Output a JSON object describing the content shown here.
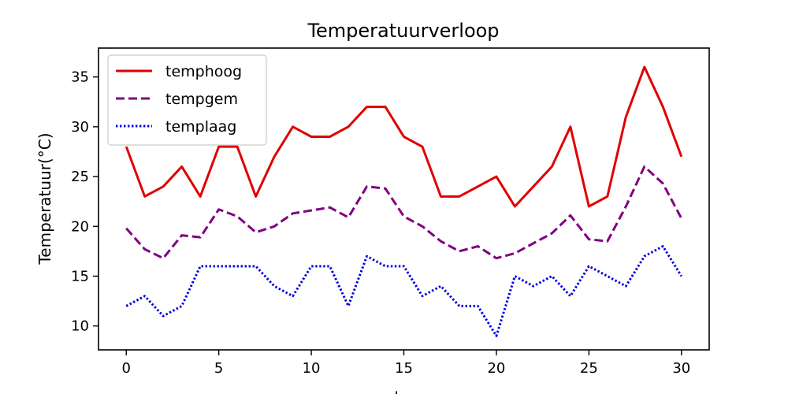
{
  "chart_data": {
    "type": "line",
    "title": "Temperatuurverloop",
    "xlabel": "dag",
    "ylabel": "Temperatuur(°C)",
    "x": [
      0,
      1,
      2,
      3,
      4,
      5,
      6,
      7,
      8,
      9,
      10,
      11,
      12,
      13,
      14,
      15,
      16,
      17,
      18,
      19,
      20,
      21,
      22,
      23,
      24,
      25,
      26,
      27,
      28,
      29,
      30
    ],
    "xlim": [
      -1.5,
      31.5
    ],
    "ylim": [
      7.6,
      37.9
    ],
    "xticks": [
      0,
      5,
      10,
      15,
      20,
      25,
      30
    ],
    "yticks": [
      10,
      15,
      20,
      25,
      30,
      35
    ],
    "grid": false,
    "legend": "top-left",
    "series": [
      {
        "name": "temphoog",
        "color": "#e00000",
        "style": "solid",
        "values": [
          28,
          23,
          24,
          26,
          23,
          28,
          28,
          23,
          27,
          30,
          29,
          29,
          30,
          32,
          32,
          29,
          28,
          23,
          23,
          24,
          25,
          22,
          24,
          26,
          30,
          22,
          23,
          31,
          36,
          32,
          27
        ]
      },
      {
        "name": "tempgem",
        "color": "#800080",
        "style": "dashed",
        "values": [
          19.8,
          17.7,
          16.8,
          19.1,
          18.9,
          21.7,
          21,
          19.4,
          20,
          21.3,
          21.6,
          21.9,
          20.9,
          24,
          23.8,
          21,
          20,
          18.5,
          17.5,
          18,
          16.8,
          17.3,
          18.3,
          19.3,
          21.1,
          18.7,
          18.5,
          22,
          26,
          24.3,
          20.8
        ]
      },
      {
        "name": "templaag",
        "color": "#0000e0",
        "style": "dotted",
        "values": [
          12,
          13,
          11,
          12,
          16,
          16,
          16,
          16,
          14,
          13,
          16,
          16,
          12,
          17,
          16,
          16,
          13,
          14,
          12,
          12,
          9,
          15,
          14,
          15,
          13,
          16,
          15,
          14,
          17,
          18,
          15
        ]
      }
    ]
  }
}
